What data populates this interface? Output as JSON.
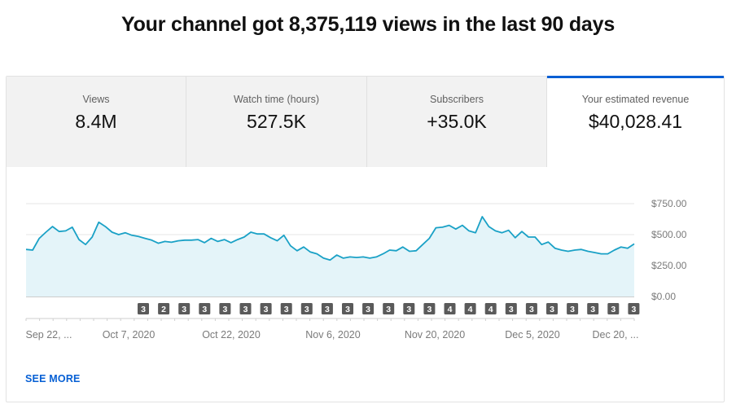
{
  "headline": "Your channel got 8,375,119 views in the last 90 days",
  "tabs": [
    {
      "label": "Views",
      "value": "8.4M"
    },
    {
      "label": "Watch time (hours)",
      "value": "527.5K"
    },
    {
      "label": "Subscribers",
      "value": "+35.0K"
    },
    {
      "label": "Your estimated revenue",
      "value": "$40,028.41",
      "active": true
    }
  ],
  "see_more": "SEE MORE",
  "colors": {
    "accent": "#065fd4",
    "line": "#1aa1c6",
    "area": "#e4f4f9"
  },
  "chart_data": {
    "type": "area",
    "series": [
      {
        "values": [
          380,
          375,
          470,
          520,
          565,
          525,
          530,
          560,
          460,
          420,
          480,
          600,
          565,
          520,
          500,
          515,
          495,
          485,
          470,
          455,
          430,
          445,
          438,
          450,
          455,
          455,
          460,
          435,
          470,
          445,
          460,
          435,
          460,
          480,
          520,
          505,
          505,
          475,
          450,
          495,
          410,
          370,
          400,
          360,
          345,
          310,
          295,
          335,
          310,
          320,
          315,
          320,
          310,
          320,
          345,
          375,
          370,
          400,
          365,
          370,
          420,
          470,
          555,
          560,
          575,
          545,
          575,
          530,
          515,
          645,
          565,
          530,
          515,
          535,
          475,
          525,
          480,
          480,
          420,
          440,
          390,
          375,
          365,
          375,
          380,
          365,
          355,
          345,
          345,
          375,
          400,
          390,
          425
        ]
      }
    ],
    "x_tick_labels": [
      "Sep 22, ...",
      "Oct 7, 2020",
      "Oct 22, 2020",
      "Nov 6, 2020",
      "Nov 20, 2020",
      "Dec 5, 2020",
      "Dec 20, ..."
    ],
    "y_tick_labels": [
      "$750.00",
      "$500.00",
      "$250.00",
      "$0.00"
    ],
    "y_ticks": [
      750,
      500,
      250,
      0
    ],
    "ylim": [
      0,
      750
    ],
    "markers": [
      "3",
      "2",
      "3",
      "3",
      "3",
      "3",
      "3",
      "3",
      "3",
      "3",
      "3",
      "3",
      "3",
      "3",
      "3",
      "4",
      "4",
      "4",
      "3",
      "3",
      "3",
      "3",
      "3",
      "3",
      "3"
    ]
  }
}
